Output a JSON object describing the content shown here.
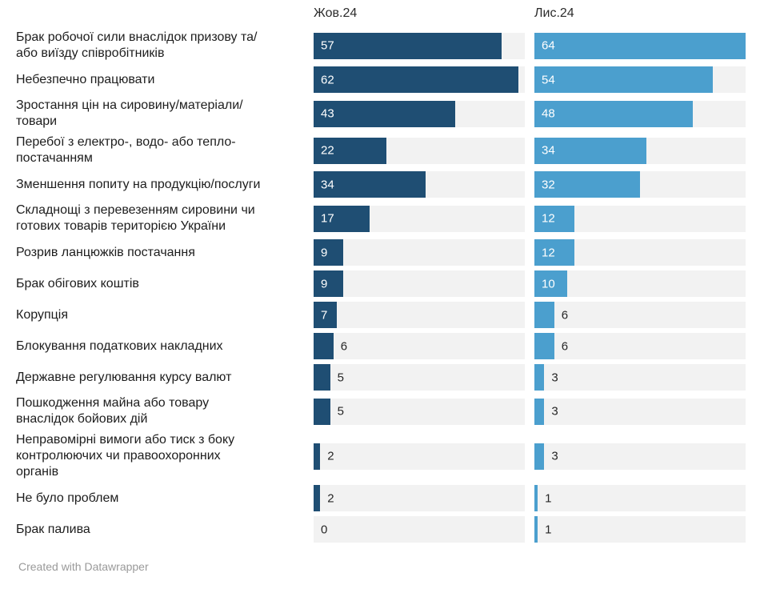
{
  "chart_data": {
    "type": "bar",
    "orientation": "horizontal",
    "layout": "two-column comparison, shared scale, light gray full-width tracks",
    "max_scale": 64,
    "value_label_inside_threshold": 7,
    "categories": [
      "Брак робочої сили внаслідок призову та/\nабо виїзду співробітників",
      "Небезпечно працювати",
      "Зростання цін на сировину/матеріали/\nтовари",
      "Перебої з електро-, водо- або тепло-\nпостачанням",
      "Зменшення попиту на продукцію/послуги",
      "Складнощі з перевезенням сировини чи\nготових товарів територією України",
      "Розрив ланцюжків постачання",
      "Брак обігових коштів",
      "Корупція",
      "Блокування податкових накладних",
      "Державне регулювання курсу валют",
      "Пошкодження майна або товару\nвнаслідок бойових дій",
      "Неправомірні вимоги або тиск з боку\nконтролюючих чи правоохоронних\nорганів",
      "Не було проблем",
      "Брак палива"
    ],
    "series": [
      {
        "name": "Жов.24",
        "color": "#1f4e73",
        "values": [
          57,
          62,
          43,
          22,
          34,
          17,
          9,
          9,
          7,
          6,
          5,
          5,
          2,
          2,
          0
        ]
      },
      {
        "name": "Лис.24",
        "color": "#4b9fce",
        "values": [
          64,
          54,
          48,
          34,
          32,
          12,
          12,
          10,
          6,
          6,
          3,
          3,
          3,
          1,
          1
        ]
      }
    ]
  },
  "colors": {
    "oct_bar": "#1f4e73",
    "nov_bar": "#4b9fce",
    "track": "#f2f2f2",
    "label_text": "#1d1d1d",
    "value_inside_text": "#ffffff",
    "value_outside_text": "#262626",
    "footer_text": "#9a9a9a"
  },
  "footer": {
    "credit": "Created with Datawrapper"
  }
}
